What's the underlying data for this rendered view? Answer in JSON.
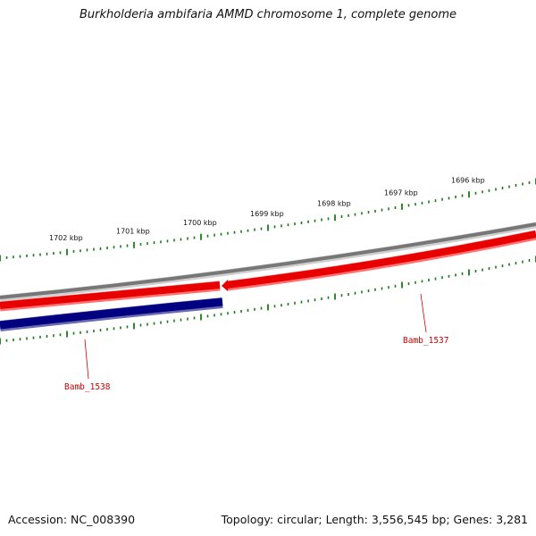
{
  "title": "Burkholderia ambifaria AMMD chromosome 1, complete genome",
  "footer": {
    "accession": "Accession: NC_008390",
    "summary": "Topology: circular; Length: 3,556,545 bp; Genes: 3,281"
  },
  "colors": {
    "backbone": "#7a7a7a",
    "forward_gene": "#e80000",
    "reverse_gene": "#000080",
    "ticks": "#1a7a1a",
    "label": "#cc0000"
  },
  "ruler": {
    "labels": [
      "1702 kbp",
      "1701 kbp",
      "1700 kbp",
      "1699 kbp",
      "1698 kbp",
      "1697 kbp",
      "1696 kbp"
    ]
  },
  "genes": [
    {
      "name": "Bamb_1538",
      "strand": "reverse"
    },
    {
      "name": "Bamb_1537",
      "strand": "forward"
    }
  ]
}
